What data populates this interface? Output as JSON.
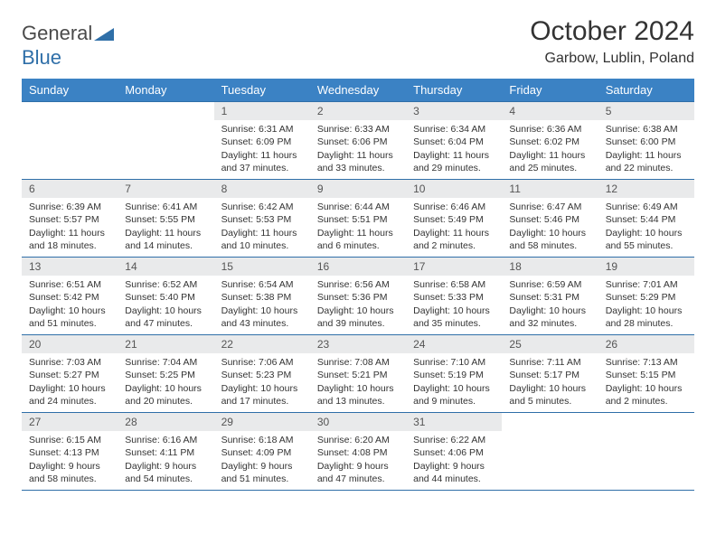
{
  "logo": {
    "part1": "General",
    "part2": "Blue"
  },
  "title": "October 2024",
  "location": "Garbow, Lublin, Poland",
  "weekdays": [
    "Sunday",
    "Monday",
    "Tuesday",
    "Wednesday",
    "Thursday",
    "Friday",
    "Saturday"
  ],
  "header_bg": "#3b82c4",
  "header_fg": "#ffffff",
  "daynum_bg": "#e9eaeb",
  "border_color": "#2f6fa8",
  "days": [
    {
      "n": "",
      "sunrise": "",
      "sunset": "",
      "daylight": ""
    },
    {
      "n": "",
      "sunrise": "",
      "sunset": "",
      "daylight": ""
    },
    {
      "n": "1",
      "sunrise": "Sunrise: 6:31 AM",
      "sunset": "Sunset: 6:09 PM",
      "daylight": "Daylight: 11 hours and 37 minutes."
    },
    {
      "n": "2",
      "sunrise": "Sunrise: 6:33 AM",
      "sunset": "Sunset: 6:06 PM",
      "daylight": "Daylight: 11 hours and 33 minutes."
    },
    {
      "n": "3",
      "sunrise": "Sunrise: 6:34 AM",
      "sunset": "Sunset: 6:04 PM",
      "daylight": "Daylight: 11 hours and 29 minutes."
    },
    {
      "n": "4",
      "sunrise": "Sunrise: 6:36 AM",
      "sunset": "Sunset: 6:02 PM",
      "daylight": "Daylight: 11 hours and 25 minutes."
    },
    {
      "n": "5",
      "sunrise": "Sunrise: 6:38 AM",
      "sunset": "Sunset: 6:00 PM",
      "daylight": "Daylight: 11 hours and 22 minutes."
    },
    {
      "n": "6",
      "sunrise": "Sunrise: 6:39 AM",
      "sunset": "Sunset: 5:57 PM",
      "daylight": "Daylight: 11 hours and 18 minutes."
    },
    {
      "n": "7",
      "sunrise": "Sunrise: 6:41 AM",
      "sunset": "Sunset: 5:55 PM",
      "daylight": "Daylight: 11 hours and 14 minutes."
    },
    {
      "n": "8",
      "sunrise": "Sunrise: 6:42 AM",
      "sunset": "Sunset: 5:53 PM",
      "daylight": "Daylight: 11 hours and 10 minutes."
    },
    {
      "n": "9",
      "sunrise": "Sunrise: 6:44 AM",
      "sunset": "Sunset: 5:51 PM",
      "daylight": "Daylight: 11 hours and 6 minutes."
    },
    {
      "n": "10",
      "sunrise": "Sunrise: 6:46 AM",
      "sunset": "Sunset: 5:49 PM",
      "daylight": "Daylight: 11 hours and 2 minutes."
    },
    {
      "n": "11",
      "sunrise": "Sunrise: 6:47 AM",
      "sunset": "Sunset: 5:46 PM",
      "daylight": "Daylight: 10 hours and 58 minutes."
    },
    {
      "n": "12",
      "sunrise": "Sunrise: 6:49 AM",
      "sunset": "Sunset: 5:44 PM",
      "daylight": "Daylight: 10 hours and 55 minutes."
    },
    {
      "n": "13",
      "sunrise": "Sunrise: 6:51 AM",
      "sunset": "Sunset: 5:42 PM",
      "daylight": "Daylight: 10 hours and 51 minutes."
    },
    {
      "n": "14",
      "sunrise": "Sunrise: 6:52 AM",
      "sunset": "Sunset: 5:40 PM",
      "daylight": "Daylight: 10 hours and 47 minutes."
    },
    {
      "n": "15",
      "sunrise": "Sunrise: 6:54 AM",
      "sunset": "Sunset: 5:38 PM",
      "daylight": "Daylight: 10 hours and 43 minutes."
    },
    {
      "n": "16",
      "sunrise": "Sunrise: 6:56 AM",
      "sunset": "Sunset: 5:36 PM",
      "daylight": "Daylight: 10 hours and 39 minutes."
    },
    {
      "n": "17",
      "sunrise": "Sunrise: 6:58 AM",
      "sunset": "Sunset: 5:33 PM",
      "daylight": "Daylight: 10 hours and 35 minutes."
    },
    {
      "n": "18",
      "sunrise": "Sunrise: 6:59 AM",
      "sunset": "Sunset: 5:31 PM",
      "daylight": "Daylight: 10 hours and 32 minutes."
    },
    {
      "n": "19",
      "sunrise": "Sunrise: 7:01 AM",
      "sunset": "Sunset: 5:29 PM",
      "daylight": "Daylight: 10 hours and 28 minutes."
    },
    {
      "n": "20",
      "sunrise": "Sunrise: 7:03 AM",
      "sunset": "Sunset: 5:27 PM",
      "daylight": "Daylight: 10 hours and 24 minutes."
    },
    {
      "n": "21",
      "sunrise": "Sunrise: 7:04 AM",
      "sunset": "Sunset: 5:25 PM",
      "daylight": "Daylight: 10 hours and 20 minutes."
    },
    {
      "n": "22",
      "sunrise": "Sunrise: 7:06 AM",
      "sunset": "Sunset: 5:23 PM",
      "daylight": "Daylight: 10 hours and 17 minutes."
    },
    {
      "n": "23",
      "sunrise": "Sunrise: 7:08 AM",
      "sunset": "Sunset: 5:21 PM",
      "daylight": "Daylight: 10 hours and 13 minutes."
    },
    {
      "n": "24",
      "sunrise": "Sunrise: 7:10 AM",
      "sunset": "Sunset: 5:19 PM",
      "daylight": "Daylight: 10 hours and 9 minutes."
    },
    {
      "n": "25",
      "sunrise": "Sunrise: 7:11 AM",
      "sunset": "Sunset: 5:17 PM",
      "daylight": "Daylight: 10 hours and 5 minutes."
    },
    {
      "n": "26",
      "sunrise": "Sunrise: 7:13 AM",
      "sunset": "Sunset: 5:15 PM",
      "daylight": "Daylight: 10 hours and 2 minutes."
    },
    {
      "n": "27",
      "sunrise": "Sunrise: 6:15 AM",
      "sunset": "Sunset: 4:13 PM",
      "daylight": "Daylight: 9 hours and 58 minutes."
    },
    {
      "n": "28",
      "sunrise": "Sunrise: 6:16 AM",
      "sunset": "Sunset: 4:11 PM",
      "daylight": "Daylight: 9 hours and 54 minutes."
    },
    {
      "n": "29",
      "sunrise": "Sunrise: 6:18 AM",
      "sunset": "Sunset: 4:09 PM",
      "daylight": "Daylight: 9 hours and 51 minutes."
    },
    {
      "n": "30",
      "sunrise": "Sunrise: 6:20 AM",
      "sunset": "Sunset: 4:08 PM",
      "daylight": "Daylight: 9 hours and 47 minutes."
    },
    {
      "n": "31",
      "sunrise": "Sunrise: 6:22 AM",
      "sunset": "Sunset: 4:06 PM",
      "daylight": "Daylight: 9 hours and 44 minutes."
    },
    {
      "n": "",
      "sunrise": "",
      "sunset": "",
      "daylight": ""
    },
    {
      "n": "",
      "sunrise": "",
      "sunset": "",
      "daylight": ""
    }
  ]
}
